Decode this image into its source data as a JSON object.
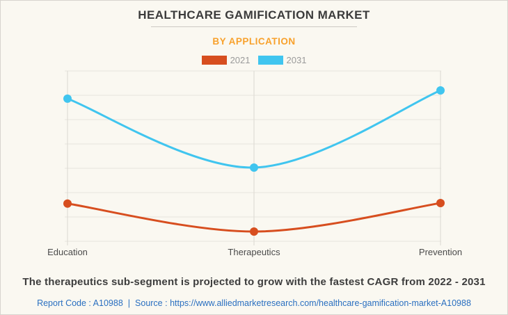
{
  "header": {
    "title": "HEALTHCARE GAMIFICATION MARKET",
    "subtitle": "BY APPLICATION"
  },
  "footer": {
    "description": "The therapeutics sub-segment is projected to grow with the fastest CAGR from 2022 - 2031",
    "report_code": "Report Code : A10988",
    "separator": "|",
    "source_prefix": "Source :",
    "source_url": "https://www.alliedmarketresearch.com/healthcare-gamification-market-A10988"
  },
  "colors": {
    "background": "#faf8f1",
    "border": "#d7d4ce",
    "title_text": "#3b3b3b",
    "subtitle_accent": "#f8a12c",
    "grid_line": "#e6e3dd",
    "axis_line": "#dbd8d1",
    "category_label": "#4a4a4a",
    "legend_label": "#9a9a9a",
    "link_blue": "#2a6fc0",
    "series_2021": "#d74e1f",
    "series_2031": "#40c5ef"
  },
  "chart_data": {
    "type": "line",
    "title": "HEALTHCARE GAMIFICATION MARKET",
    "subtitle": "BY APPLICATION",
    "categories": [
      "Education",
      "Therapeutics",
      "Prevention"
    ],
    "series": [
      {
        "name": "2021",
        "color": "#d74e1f",
        "values": [
          1.55,
          0.4,
          1.57
        ]
      },
      {
        "name": "2031",
        "color": "#40c5ef",
        "values": [
          5.86,
          3.03,
          6.2
        ]
      }
    ],
    "xlabel": "",
    "ylabel": "",
    "ylim": [
      0,
      7
    ],
    "y_tick_labels_shown": false,
    "grid": true,
    "legend_position": "top",
    "marker": "circle",
    "line_style": "smooth"
  }
}
